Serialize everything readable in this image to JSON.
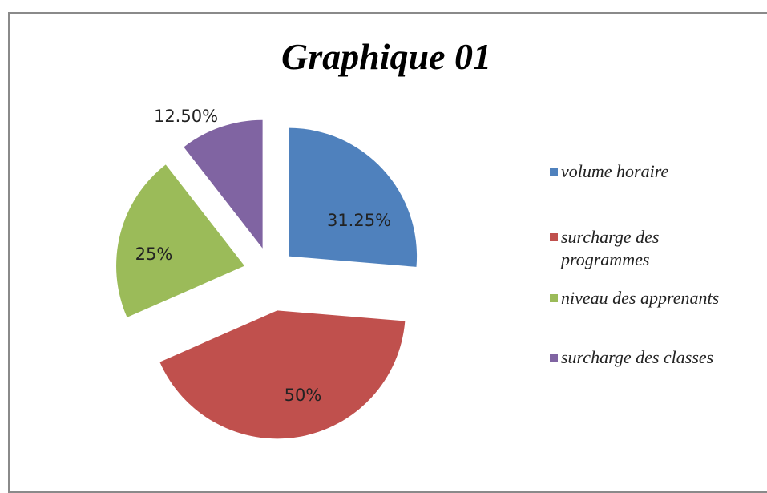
{
  "chart_data": {
    "type": "pie",
    "title": "Graphique 01",
    "categories": [
      "volume horaire",
      "surcharge des programmes",
      "niveau des apprenants",
      "surcharge des classes"
    ],
    "values": [
      31.25,
      50,
      25,
      12.5
    ],
    "value_labels": [
      "31.25%",
      "50%",
      "25%",
      "12.50%"
    ],
    "colors": [
      "#4f81bd",
      "#c0504d",
      "#9bbb59",
      "#8064a2"
    ],
    "legend": "right"
  }
}
